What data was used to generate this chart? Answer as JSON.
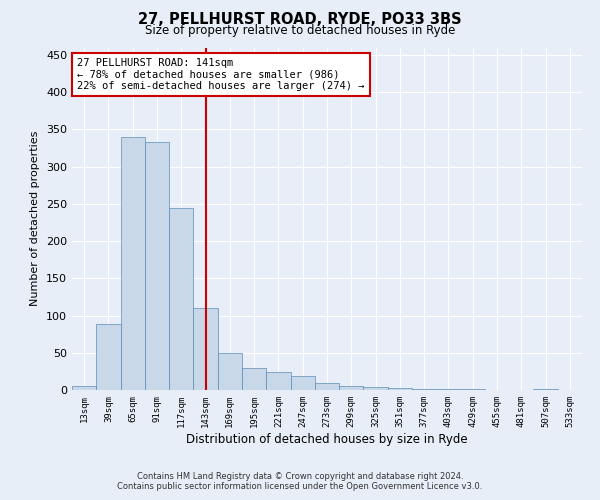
{
  "title": "27, PELLHURST ROAD, RYDE, PO33 3BS",
  "subtitle": "Size of property relative to detached houses in Ryde",
  "xlabel": "Distribution of detached houses by size in Ryde",
  "ylabel": "Number of detached properties",
  "bar_color": "#c8d8e8",
  "bar_edge_color": "#5b8db8",
  "background_color": "#e8eef8",
  "grid_color": "#ffffff",
  "marker_line_color": "#cc0000",
  "annotation_text": "27 PELLHURST ROAD: 141sqm\n← 78% of detached houses are smaller (986)\n22% of semi-detached houses are larger (274) →",
  "annotation_box_color": "#ffffff",
  "annotation_box_edge_color": "#cc0000",
  "categories": [
    "13sqm",
    "39sqm",
    "65sqm",
    "91sqm",
    "117sqm",
    "143sqm",
    "169sqm",
    "195sqm",
    "221sqm",
    "247sqm",
    "273sqm",
    "299sqm",
    "325sqm",
    "351sqm",
    "377sqm",
    "403sqm",
    "429sqm",
    "455sqm",
    "481sqm",
    "507sqm",
    "533sqm"
  ],
  "values": [
    5,
    88,
    340,
    333,
    245,
    110,
    50,
    30,
    24,
    19,
    9,
    5,
    4,
    3,
    2,
    1,
    1,
    0,
    0,
    1,
    0
  ],
  "ylim": [
    0,
    460
  ],
  "yticks": [
    0,
    50,
    100,
    150,
    200,
    250,
    300,
    350,
    400,
    450
  ],
  "marker_bin_index": 5,
  "footer1": "Contains HM Land Registry data © Crown copyright and database right 2024.",
  "footer2": "Contains public sector information licensed under the Open Government Licence v3.0."
}
